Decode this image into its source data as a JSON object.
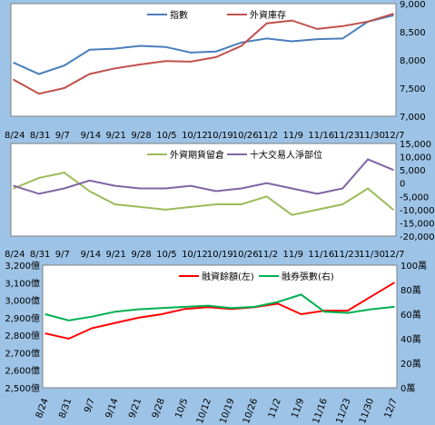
{
  "chart_data": [
    {
      "type": "line",
      "x": [
        "8/24",
        "8/31",
        "9/7",
        "9/14",
        "9/21",
        "9/28",
        "10/5",
        "10/12",
        "10/19",
        "10/26",
        "11/2",
        "11/9",
        "11/16",
        "11/23",
        "11/30",
        "12/7"
      ],
      "y_right_ticks": [
        "9,000",
        "8,500",
        "8,000",
        "7,500",
        "7,000"
      ],
      "ylim_right": [
        7000,
        9000
      ],
      "series": [
        {
          "name": "指數",
          "color": "#4a7ebb",
          "axis": "right",
          "values": [
            7950,
            7750,
            7900,
            8180,
            8200,
            8250,
            8230,
            8130,
            8150,
            8310,
            8380,
            8330,
            8370,
            8380,
            8680,
            8790
          ]
        },
        {
          "name": "外資庫存",
          "color": "#c0504d",
          "axis": "right",
          "values": [
            7650,
            7400,
            7500,
            7750,
            7850,
            7920,
            7980,
            7970,
            8050,
            8250,
            8650,
            8700,
            8550,
            8600,
            8680,
            8820
          ]
        }
      ],
      "legend": "top",
      "grid": false
    },
    {
      "type": "line",
      "x": [
        "8/24",
        "8/31",
        "9/7",
        "9/14",
        "9/21",
        "9/28",
        "10/5",
        "10/12",
        "10/19",
        "10/26",
        "11/2",
        "11/9",
        "11/16",
        "11/23",
        "11/30",
        "12/7"
      ],
      "y_right_ticks": [
        "15,000",
        "10,000",
        "5,000",
        "0",
        "-5,000",
        "-10,000",
        "-15,000",
        "-20,000"
      ],
      "ylim_right": [
        -20000,
        15000
      ],
      "series": [
        {
          "name": "外資期貨留倉",
          "color": "#9bbb59",
          "axis": "right",
          "values": [
            -2000,
            2000,
            4000,
            -3000,
            -8000,
            -9000,
            -10000,
            -9000,
            -8000,
            -8000,
            -5000,
            -12000,
            -10000,
            -8000,
            -2000,
            -10000
          ]
        },
        {
          "name": "十大交易人淨部位",
          "color": "#8064a2",
          "axis": "right",
          "values": [
            -1000,
            -4000,
            -2000,
            1000,
            -1000,
            -2000,
            -2000,
            -1000,
            -3000,
            -2000,
            0,
            -2000,
            -4000,
            -2000,
            9000,
            5000
          ]
        }
      ],
      "legend": "top",
      "grid": false
    },
    {
      "type": "line",
      "x": [
        "8/24",
        "8/31",
        "9/7",
        "9/14",
        "9/21",
        "9/28",
        "10/5",
        "10/12",
        "10/19",
        "10/26",
        "11/2",
        "11/9",
        "11/16",
        "11/23",
        "11/30",
        "12/7"
      ],
      "y_left_ticks": [
        "3,200億",
        "3,100億",
        "3,000億",
        "2,900億",
        "2,800億",
        "2,700億",
        "2,600億",
        "2,500億"
      ],
      "ylim_left": [
        2500,
        3200
      ],
      "y_right_ticks": [
        "100萬",
        "80萬",
        "60萬",
        "40萬",
        "20萬",
        "0萬"
      ],
      "ylim_right": [
        0,
        100
      ],
      "series": [
        {
          "name": "融資餘額(左)",
          "color": "#ff0000",
          "axis": "left",
          "values": [
            2810,
            2780,
            2840,
            2870,
            2900,
            2920,
            2950,
            2960,
            2950,
            2960,
            2980,
            2920,
            2940,
            2940,
            3020,
            3100
          ]
        },
        {
          "name": "融券張數(右)",
          "color": "#00b050",
          "axis": "right",
          "values": [
            60,
            55,
            58,
            62,
            64,
            65,
            66,
            67,
            65,
            66,
            70,
            76,
            62,
            61,
            64,
            66
          ]
        }
      ],
      "legend": "top",
      "grid": false
    }
  ]
}
